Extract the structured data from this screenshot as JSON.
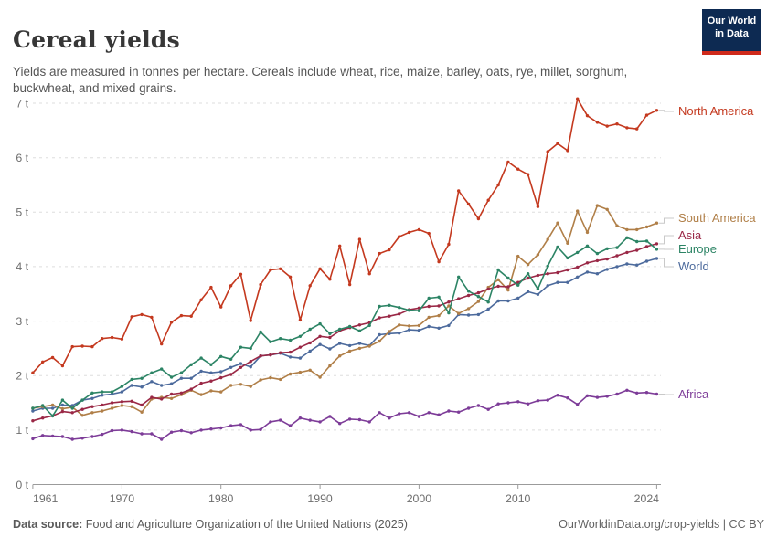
{
  "header": {
    "title": "Cereal yields",
    "subtitle": "Yields are measured in tonnes per hectare. Cereals include wheat, rice, maize, barley, oats, rye, millet, sorghum, buckwheat, and mixed grains.",
    "logo": {
      "line1": "Our World",
      "line2": "in Data",
      "bg_color": "#0d2a52",
      "stripe_color": "#cf2a1b"
    }
  },
  "footer": {
    "source_label": "Data source:",
    "source_value": "Food and Agriculture Organization of the United Nations (2025)",
    "right_text": "OurWorldinData.org/crop-yields | CC BY"
  },
  "chart_data": {
    "type": "line",
    "title": "Cereal yields",
    "unit": "tonnes per hectare",
    "grid": "horizontal-dashed",
    "legend_position": "right",
    "ylim": [
      0,
      7
    ],
    "xlim": [
      1961,
      2025
    ],
    "y_ticks": [
      "0 t",
      "1 t",
      "2 t",
      "3 t",
      "4 t",
      "5 t",
      "6 t",
      "7 t"
    ],
    "x_ticks": [
      "1961",
      "1970",
      "1980",
      "1990",
      "2000",
      "2010",
      "2024"
    ],
    "x": [
      1961,
      1962,
      1963,
      1964,
      1965,
      1966,
      1967,
      1968,
      1969,
      1970,
      1971,
      1972,
      1973,
      1974,
      1975,
      1976,
      1977,
      1978,
      1979,
      1980,
      1981,
      1982,
      1983,
      1984,
      1985,
      1986,
      1987,
      1988,
      1989,
      1990,
      1991,
      1992,
      1993,
      1994,
      1995,
      1996,
      1997,
      1998,
      1999,
      2000,
      2001,
      2002,
      2003,
      2004,
      2005,
      2006,
      2007,
      2008,
      2009,
      2010,
      2011,
      2012,
      2013,
      2014,
      2015,
      2016,
      2017,
      2018,
      2019,
      2020,
      2021,
      2022,
      2023,
      2024
    ],
    "series": [
      {
        "name": "North America",
        "color": "#c4391f",
        "values": [
          2.05,
          2.25,
          2.33,
          2.18,
          2.53,
          2.54,
          2.53,
          2.68,
          2.7,
          2.67,
          3.08,
          3.12,
          3.07,
          2.58,
          2.98,
          3.1,
          3.09,
          3.39,
          3.62,
          3.26,
          3.65,
          3.86,
          3.01,
          3.67,
          3.94,
          3.96,
          3.81,
          3.02,
          3.65,
          3.96,
          3.77,
          4.38,
          3.67,
          4.5,
          3.87,
          4.24,
          4.31,
          4.55,
          4.63,
          4.68,
          4.61,
          4.09,
          4.41,
          5.39,
          5.15,
          4.88,
          5.22,
          5.5,
          5.92,
          5.79,
          5.69,
          5.1,
          6.11,
          6.26,
          6.13,
          7.08,
          6.77,
          6.65,
          6.58,
          6.62,
          6.55,
          6.53,
          6.78,
          6.87
        ]
      },
      {
        "name": "South America",
        "color": "#b07f48",
        "values": [
          1.4,
          1.43,
          1.46,
          1.39,
          1.42,
          1.27,
          1.32,
          1.35,
          1.4,
          1.45,
          1.43,
          1.33,
          1.57,
          1.6,
          1.58,
          1.65,
          1.73,
          1.65,
          1.72,
          1.7,
          1.82,
          1.84,
          1.8,
          1.92,
          1.96,
          1.93,
          2.03,
          2.06,
          2.1,
          1.97,
          2.18,
          2.36,
          2.45,
          2.5,
          2.54,
          2.63,
          2.81,
          2.93,
          2.91,
          2.92,
          3.07,
          3.1,
          3.28,
          3.14,
          3.23,
          3.36,
          3.62,
          3.76,
          3.57,
          4.19,
          4.04,
          4.22,
          4.5,
          4.8,
          4.43,
          5.02,
          4.63,
          5.12,
          5.05,
          4.75,
          4.68,
          4.68,
          4.73,
          4.8
        ]
      },
      {
        "name": "Asia",
        "color": "#9a2846",
        "values": [
          1.17,
          1.22,
          1.26,
          1.34,
          1.32,
          1.38,
          1.43,
          1.46,
          1.5,
          1.52,
          1.53,
          1.46,
          1.6,
          1.57,
          1.66,
          1.68,
          1.75,
          1.86,
          1.9,
          1.96,
          2.02,
          2.15,
          2.26,
          2.36,
          2.38,
          2.42,
          2.43,
          2.52,
          2.6,
          2.72,
          2.7,
          2.82,
          2.88,
          2.93,
          2.97,
          3.06,
          3.09,
          3.13,
          3.21,
          3.24,
          3.27,
          3.28,
          3.35,
          3.41,
          3.47,
          3.52,
          3.59,
          3.64,
          3.63,
          3.71,
          3.79,
          3.84,
          3.87,
          3.89,
          3.94,
          3.99,
          4.07,
          4.11,
          4.14,
          4.2,
          4.26,
          4.3,
          4.37,
          4.42
        ]
      },
      {
        "name": "Europe",
        "color": "#2c8465",
        "values": [
          1.4,
          1.45,
          1.26,
          1.55,
          1.4,
          1.55,
          1.68,
          1.7,
          1.7,
          1.8,
          1.93,
          1.95,
          2.05,
          2.12,
          1.97,
          2.05,
          2.2,
          2.32,
          2.2,
          2.35,
          2.3,
          2.52,
          2.5,
          2.8,
          2.62,
          2.68,
          2.65,
          2.72,
          2.85,
          2.95,
          2.77,
          2.85,
          2.9,
          2.82,
          2.92,
          3.27,
          3.29,
          3.25,
          3.2,
          3.19,
          3.42,
          3.44,
          3.15,
          3.81,
          3.55,
          3.45,
          3.35,
          3.94,
          3.79,
          3.66,
          3.87,
          3.59,
          4.01,
          4.36,
          4.16,
          4.26,
          4.38,
          4.24,
          4.33,
          4.35,
          4.53,
          4.46,
          4.47,
          4.32
        ]
      },
      {
        "name": "World",
        "color": "#4c6a9c",
        "values": [
          1.35,
          1.4,
          1.4,
          1.46,
          1.45,
          1.55,
          1.58,
          1.64,
          1.66,
          1.7,
          1.82,
          1.79,
          1.89,
          1.82,
          1.85,
          1.95,
          1.95,
          2.08,
          2.05,
          2.07,
          2.15,
          2.22,
          2.16,
          2.36,
          2.38,
          2.41,
          2.34,
          2.32,
          2.45,
          2.57,
          2.49,
          2.59,
          2.55,
          2.59,
          2.55,
          2.75,
          2.77,
          2.78,
          2.84,
          2.83,
          2.9,
          2.87,
          2.92,
          3.12,
          3.11,
          3.12,
          3.22,
          3.37,
          3.37,
          3.42,
          3.54,
          3.49,
          3.65,
          3.71,
          3.71,
          3.81,
          3.9,
          3.87,
          3.95,
          4.0,
          4.05,
          4.03,
          4.1,
          4.15
        ]
      },
      {
        "name": "Africa",
        "color": "#7d3c98",
        "values": [
          0.84,
          0.9,
          0.89,
          0.88,
          0.83,
          0.85,
          0.88,
          0.92,
          0.99,
          1.0,
          0.97,
          0.93,
          0.93,
          0.83,
          0.96,
          0.99,
          0.95,
          1.0,
          1.02,
          1.04,
          1.08,
          1.1,
          1.0,
          1.01,
          1.15,
          1.18,
          1.08,
          1.22,
          1.18,
          1.15,
          1.25,
          1.12,
          1.2,
          1.19,
          1.15,
          1.32,
          1.22,
          1.3,
          1.32,
          1.25,
          1.32,
          1.28,
          1.35,
          1.33,
          1.4,
          1.45,
          1.38,
          1.48,
          1.5,
          1.52,
          1.48,
          1.54,
          1.55,
          1.64,
          1.59,
          1.47,
          1.63,
          1.6,
          1.62,
          1.66,
          1.73,
          1.68,
          1.69,
          1.66
        ]
      }
    ]
  }
}
